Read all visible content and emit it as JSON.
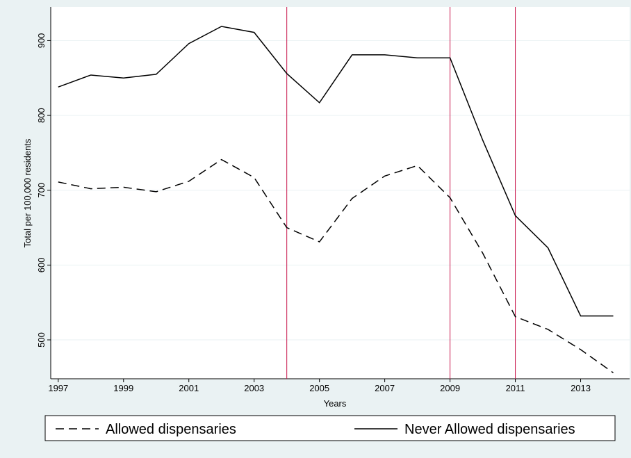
{
  "chart_data": {
    "type": "line",
    "y_label": "Total per 100,000 residents",
    "x_label": "Years",
    "x": [
      1997,
      1998,
      1999,
      2000,
      2001,
      2002,
      2003,
      2004,
      2005,
      2006,
      2007,
      2008,
      2009,
      2010,
      2011,
      2012,
      2013,
      2014
    ],
    "series": [
      {
        "name": "Allowed dispensaries",
        "color": "#000000",
        "line_style": "dashed",
        "values": [
          711,
          702,
          704,
          698,
          712,
          741,
          717,
          650,
          631,
          689,
          719,
          733,
          690,
          616,
          531,
          514,
          487,
          456
        ]
      },
      {
        "name": "Never Allowed dispensaries",
        "color": "#000000",
        "line_style": "solid",
        "values": [
          838,
          854,
          850,
          855,
          896,
          919,
          911,
          856,
          817,
          881,
          881,
          877,
          877,
          767,
          666,
          623,
          532,
          532
        ]
      }
    ],
    "vlines": [
      2004,
      2009,
      2011
    ],
    "vline_color": "#c8144a",
    "xlim": [
      1996.77,
      2014.5
    ],
    "xticks": [
      1997,
      1999,
      2001,
      2003,
      2005,
      2007,
      2009,
      2011,
      2013
    ],
    "ylim": [
      448,
      945
    ],
    "yticks": [
      500,
      600,
      700,
      800,
      900
    ],
    "grid": true,
    "legend": "bottom"
  }
}
